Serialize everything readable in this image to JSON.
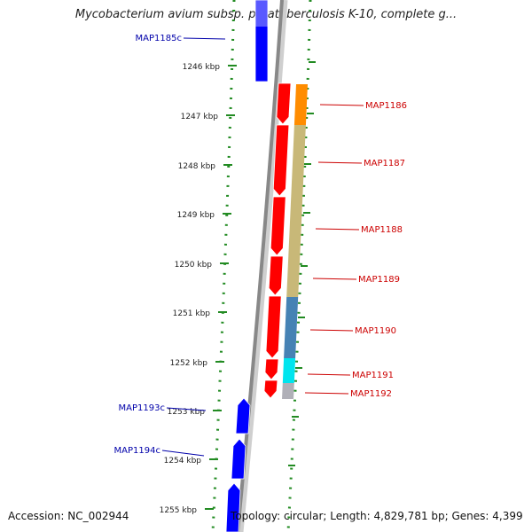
{
  "title": "Mycobacterium avium subsp. paratuberculosis K-10, complete g...",
  "footer": {
    "accession": "Accession: NC_002944",
    "topology": "Topology: circular",
    "length": "Length: 4,829,781 bp",
    "genes": "Genes: 4,399"
  },
  "ticks": [
    {
      "label": "1246 kbp",
      "kbp": 1246
    },
    {
      "label": "1247 kbp",
      "kbp": 1247
    },
    {
      "label": "1248 kbp",
      "kbp": 1248
    },
    {
      "label": "1249 kbp",
      "kbp": 1249
    },
    {
      "label": "1250 kbp",
      "kbp": 1250
    },
    {
      "label": "1251 kbp",
      "kbp": 1251
    },
    {
      "label": "1252 kbp",
      "kbp": 1252
    },
    {
      "label": "1253 kbp",
      "kbp": 1253
    },
    {
      "label": "1254 kbp",
      "kbp": 1254
    },
    {
      "label": "1255 kbp",
      "kbp": 1255
    }
  ],
  "forward_genes": [
    {
      "label": "MAP1186",
      "color": "#ff0000",
      "cog_color": "#ff8c00"
    },
    {
      "label": "MAP1187",
      "color": "#ff0000",
      "cog_color": "#c8b878"
    },
    {
      "label": "MAP1188",
      "color": "#ff0000",
      "cog_color": "#c8b878"
    },
    {
      "label": "MAP1189",
      "color": "#ff0000",
      "cog_color": "#c8b878"
    },
    {
      "label": "MAP1190",
      "color": "#ff0000",
      "cog_color": "#4682b4"
    },
    {
      "label": "MAP1191",
      "color": "#ff0000",
      "cog_color": "#00e5ee"
    },
    {
      "label": "MAP1192",
      "color": "#ff0000",
      "cog_color": "#b0b0b8"
    }
  ],
  "reverse_genes": [
    {
      "label": "MAP1185c",
      "color": "#0000ff"
    },
    {
      "label": "MAP1193c",
      "color": "#0000ff"
    },
    {
      "label": "MAP1194c",
      "color": "#0000ff"
    }
  ],
  "colors": {
    "forward_label": "#cc0000",
    "reverse_label": "#0000aa",
    "backbone": "#888888",
    "dotted_track": "#228b22"
  }
}
